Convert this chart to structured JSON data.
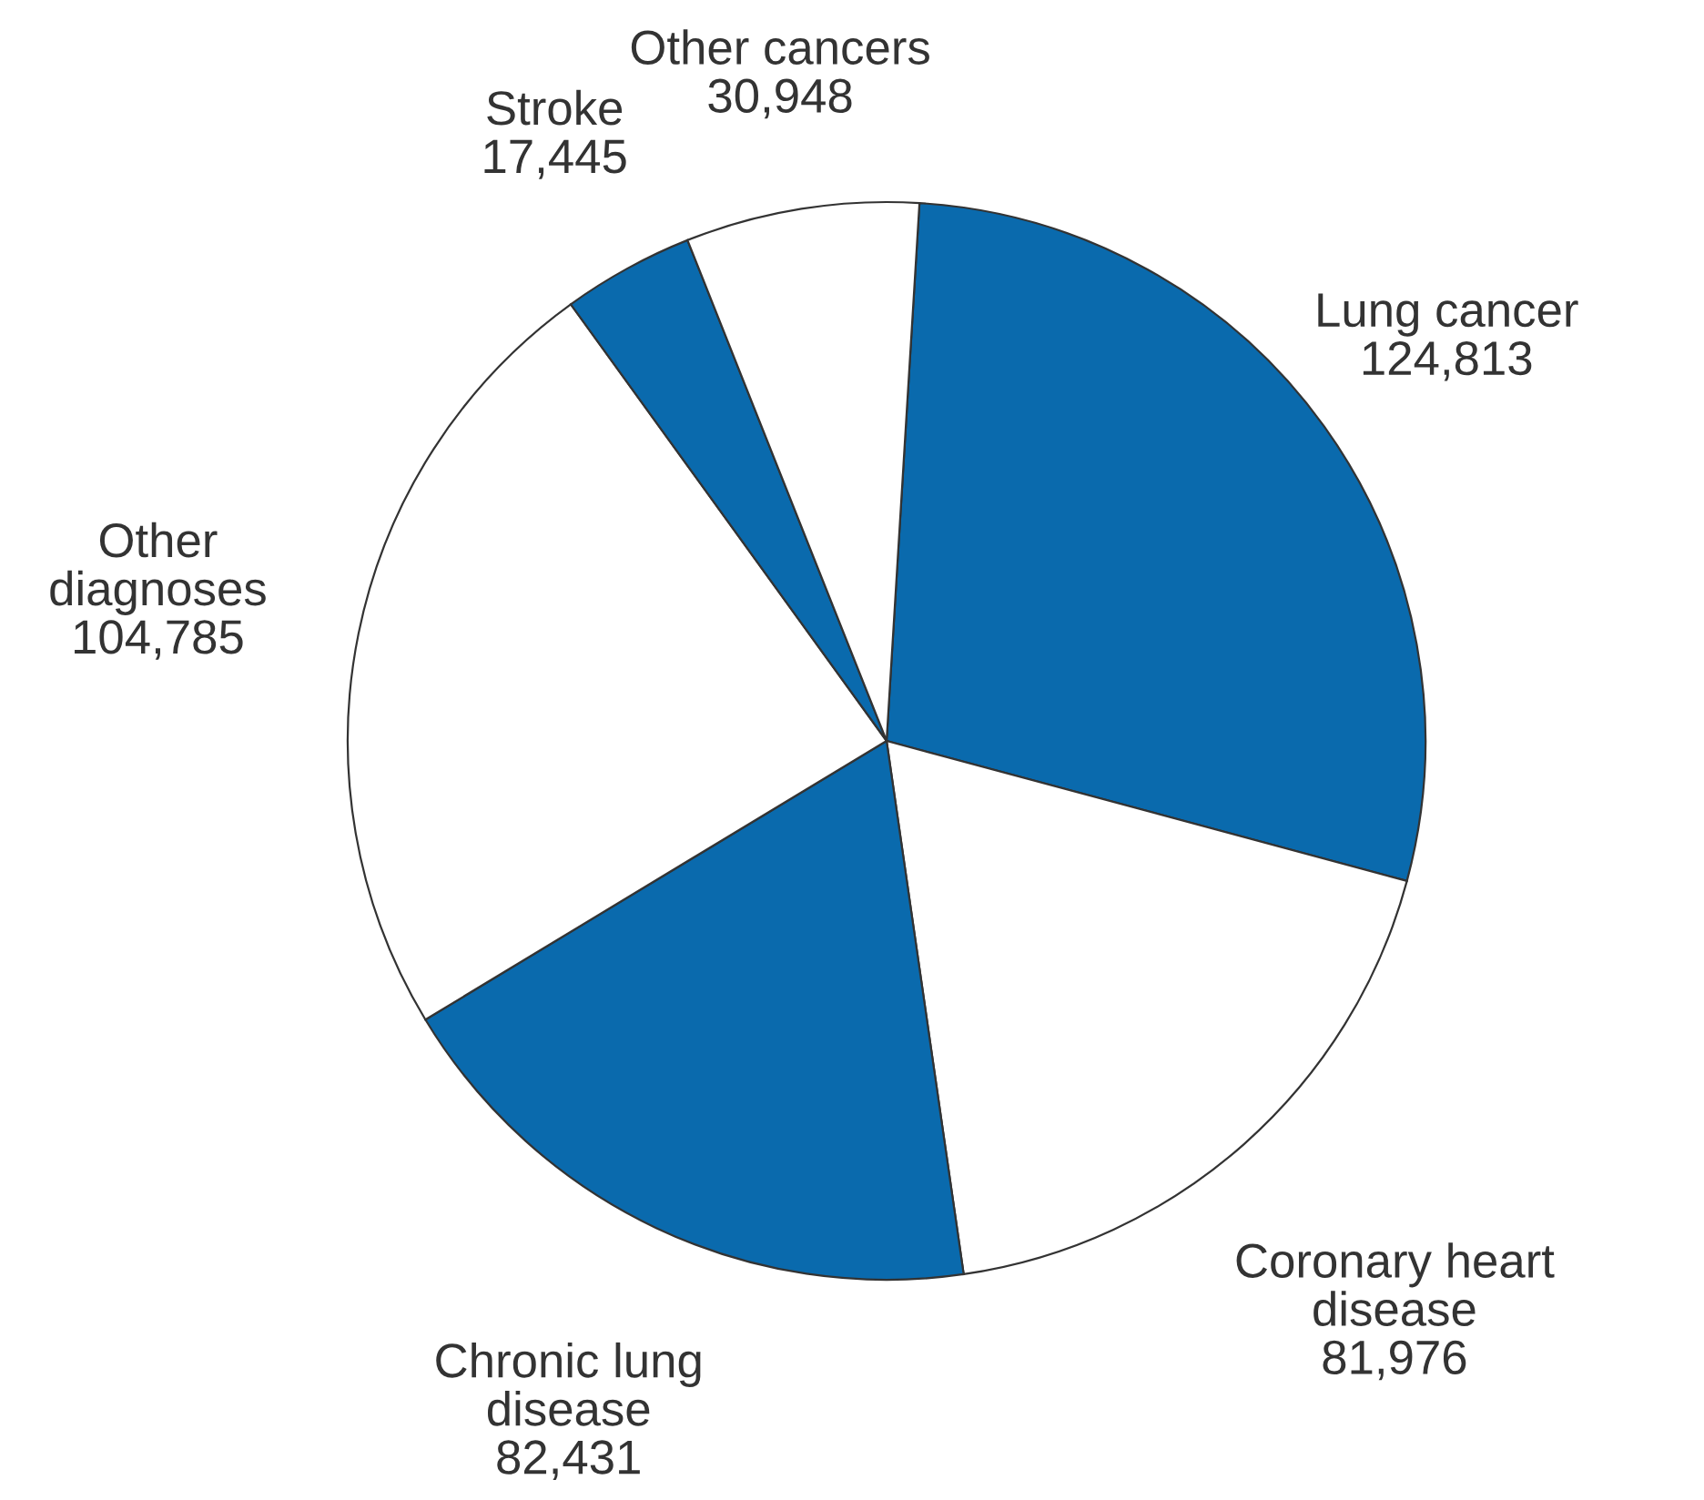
{
  "chart_data": {
    "type": "pie",
    "categories": [
      "Lung cancer",
      "Coronary heart\ndisease",
      "Chronic lung\ndisease",
      "Other\ndiagnoses",
      "Stroke",
      "Other cancers"
    ],
    "values": [
      124813,
      81976,
      82431,
      104785,
      17445,
      30948
    ],
    "value_labels": [
      "124,813",
      "81,976",
      "82,431",
      "104,785",
      "17,445",
      "30,948"
    ],
    "colors": [
      "#0a6aad",
      "#ffffff",
      "#0a6aad",
      "#ffffff",
      "#0a6aad",
      "#ffffff"
    ]
  }
}
